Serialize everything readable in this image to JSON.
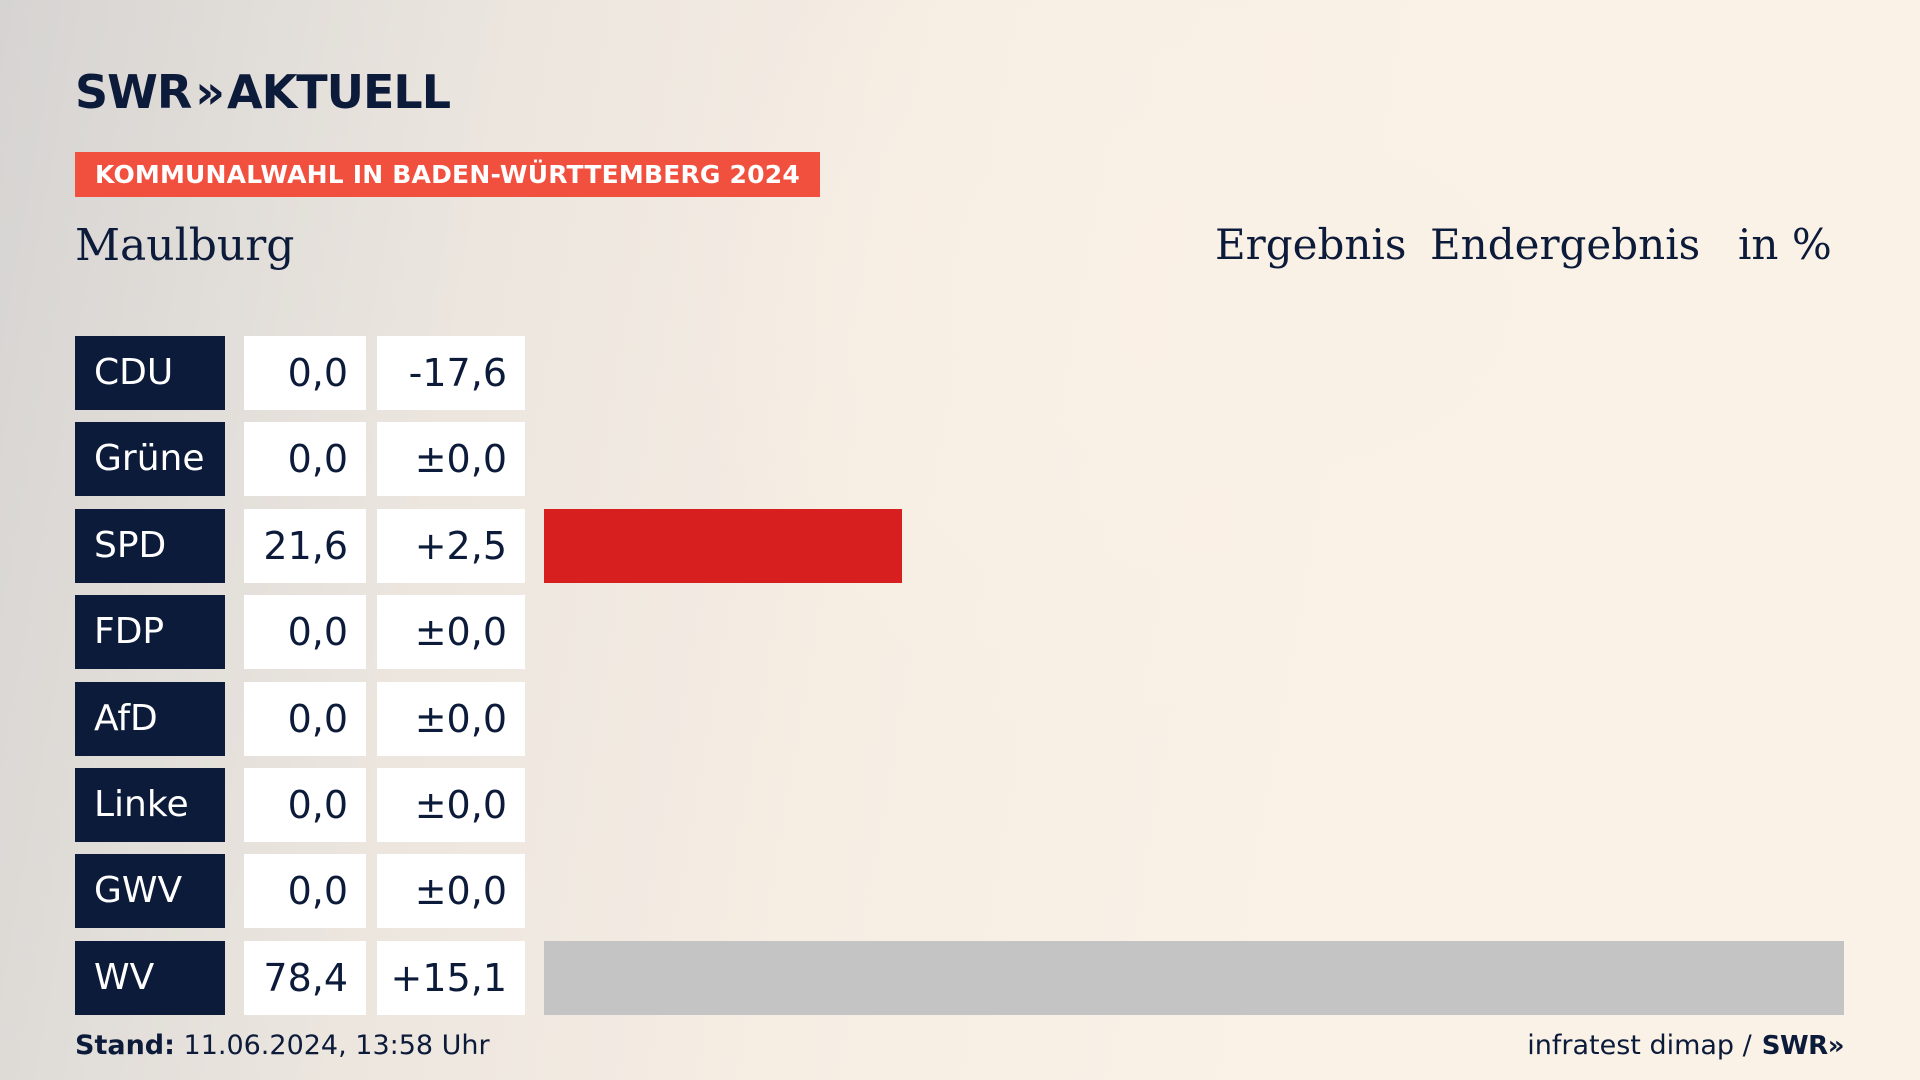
{
  "brand": {
    "name": "SWR",
    "chevrons": "»",
    "suffix": "AKTUELL"
  },
  "badge": {
    "label": "KOMMUNALWAHL IN BADEN-WÜRTTEMBERG 2024",
    "color": "#f2503f"
  },
  "header": {
    "title": "Maulburg",
    "ergebnis": "Ergebnis",
    "endergebnis": "Endergebnis",
    "unit": "in %"
  },
  "chart_data": {
    "type": "bar",
    "orientation": "horizontal",
    "categories": [
      "CDU",
      "Grüne",
      "SPD",
      "FDP",
      "AfD",
      "Linke",
      "GWV",
      "WV"
    ],
    "series": [
      {
        "values": [
          0.0,
          0.0,
          21.6,
          0.0,
          0.0,
          0.0,
          0.0,
          78.4
        ]
      }
    ],
    "value_labels": [
      "0,0",
      "0,0",
      "21,6",
      "0,0",
      "0,0",
      "0,0",
      "0,0",
      "78,4"
    ],
    "diff_labels": [
      "-17,6",
      "±0,0",
      "+2,5",
      "±0,0",
      "±0,0",
      "±0,0",
      "±0,0",
      "+15,1"
    ],
    "colors": [
      "#000000",
      "#46962b",
      "#d71f1f",
      "#ffd500",
      "#009ee0",
      "#be3075",
      "#777777",
      "#c4c4c4"
    ],
    "xlim": [
      0,
      78.4
    ]
  },
  "footer": {
    "stand_label": "Stand:",
    "stand_value": "11.06.2024, 13:58 Uhr",
    "source": "infratest dimap /",
    "source_brand": "SWR»"
  }
}
